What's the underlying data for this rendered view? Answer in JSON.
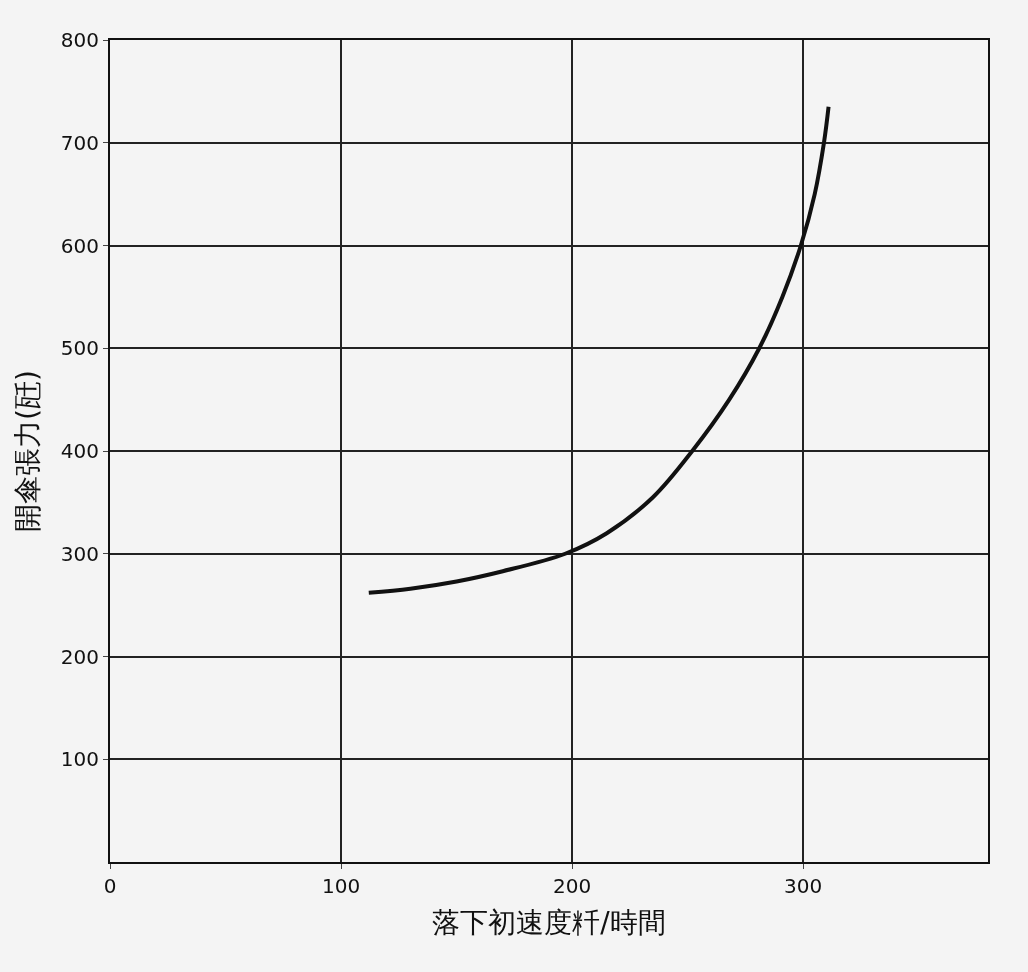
{
  "chart_data": {
    "type": "line",
    "xlabel": "落下初速度粁/時間",
    "ylabel": "開傘張力(瓩)",
    "x": [
      112,
      130,
      150,
      170,
      197,
      215,
      235,
      252,
      268,
      281,
      291,
      299,
      305,
      309,
      311
    ],
    "series": [
      {
        "color": "#111111",
        "values": [
          262,
          266,
          273,
          283,
          300,
          320,
          355,
          400,
          450,
          500,
          550,
          600,
          650,
          700,
          735
        ]
      }
    ],
    "xlim": [
      0,
      380
    ],
    "xticks": [
      0,
      100,
      200,
      300
    ],
    "ylim": [
      0,
      800
    ],
    "yticks": [
      100,
      200,
      300,
      400,
      500,
      600,
      700,
      800
    ],
    "grid": true,
    "marker": "none",
    "line_style": "solid"
  }
}
